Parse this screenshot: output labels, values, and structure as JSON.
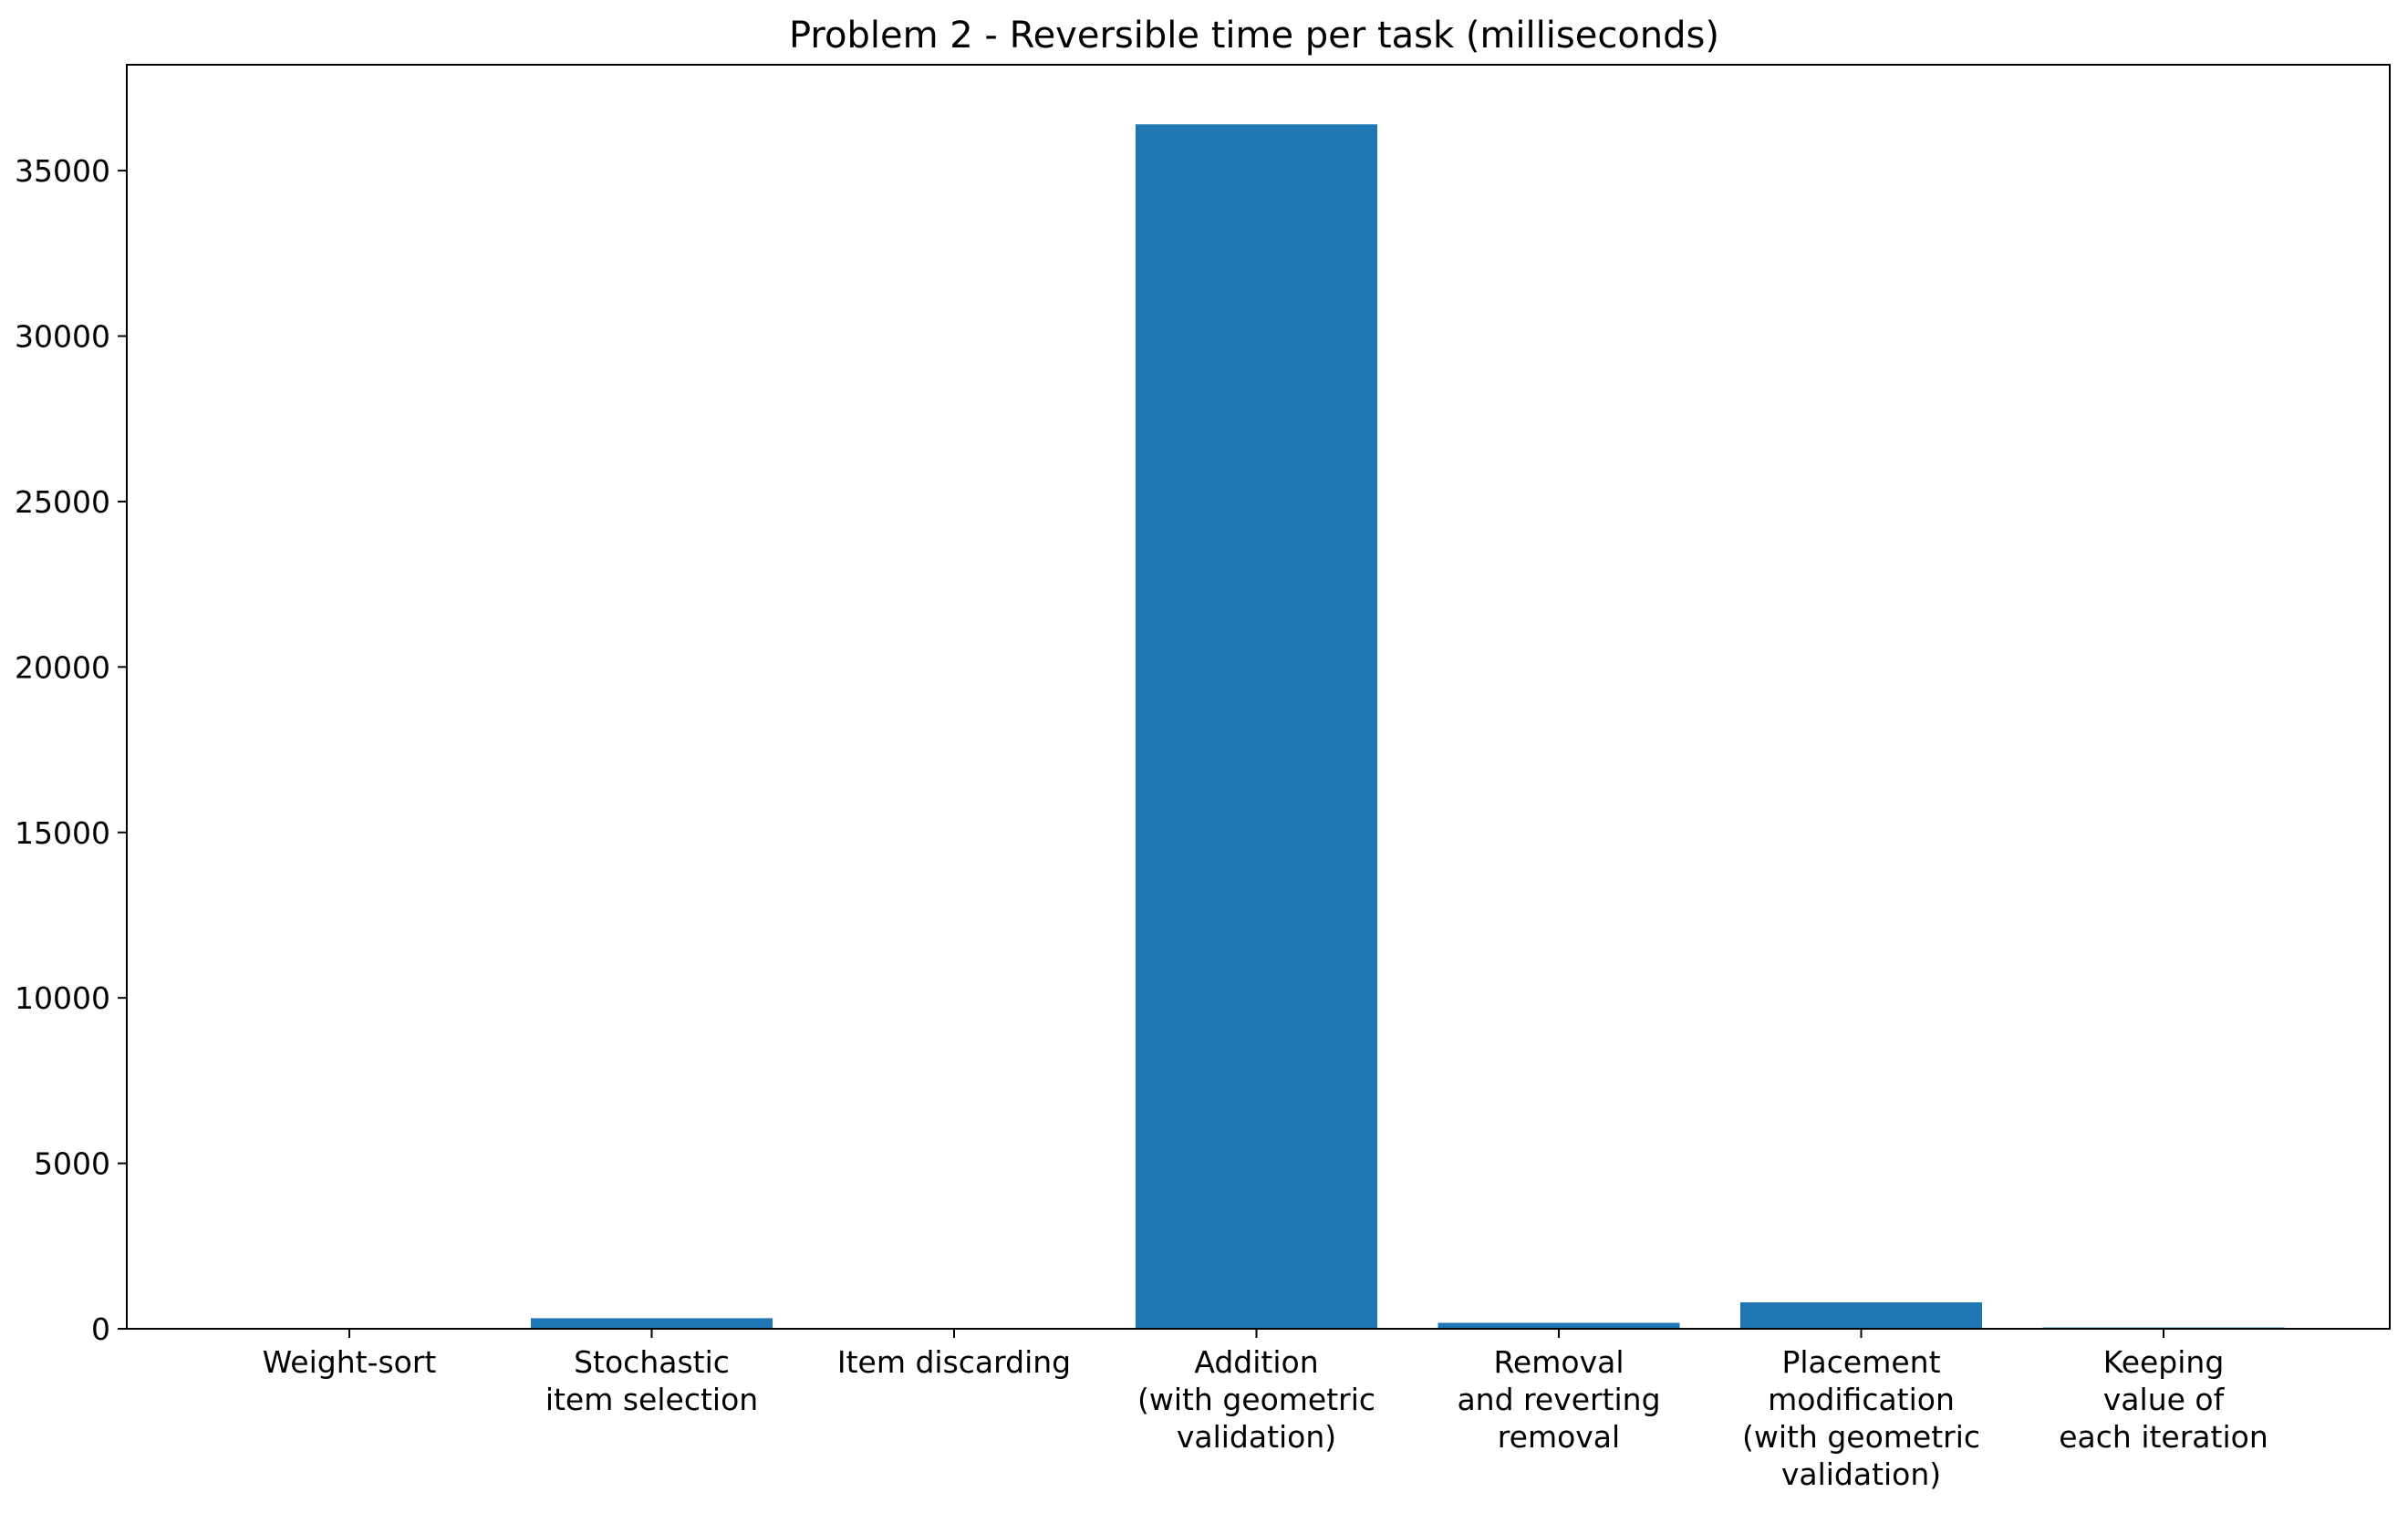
{
  "chart_data": {
    "type": "bar",
    "title": "Problem 2 - Reversible time per task (milliseconds)",
    "xlabel": "",
    "ylabel": "",
    "categories": [
      "Weight-sort",
      "Stochastic\nitem selection",
      "Item discarding",
      "Addition\n(with geometric\nvalidation)",
      "Removal\nand reverting\nremoval",
      "Placement\nmodification\n(with geometric\nvalidation)",
      "Keeping\nvalue of\neach iteration"
    ],
    "values": [
      5,
      320,
      5,
      36400,
      180,
      800,
      40
    ],
    "ylim": [
      0,
      38200
    ],
    "yticks": [
      0,
      5000,
      10000,
      15000,
      20000,
      25000,
      30000,
      35000
    ],
    "grid": false,
    "bar_color": "#1f77b4"
  }
}
